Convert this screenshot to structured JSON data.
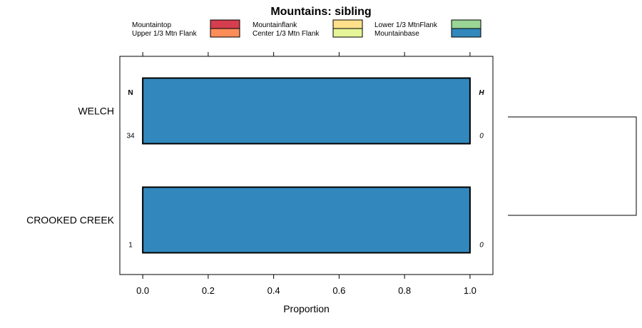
{
  "chart_data": {
    "type": "bar",
    "orientation": "horizontal",
    "stacked": true,
    "title": "Mountains: sibling",
    "xlabel": "Proportion",
    "ylabel": "",
    "xlim": [
      -0.07,
      1.07
    ],
    "x_ticks": [
      "0.0",
      "0.2",
      "0.4",
      "0.6",
      "0.8",
      "1.0"
    ],
    "x_tick_values": [
      0,
      0.2,
      0.4,
      0.6,
      0.8,
      1.0
    ],
    "categories": [
      "WELCH",
      "CROOKED CREEK"
    ],
    "series": [
      {
        "name": "Mountaintop",
        "color": "#d53e4f",
        "values": [
          0,
          0
        ]
      },
      {
        "name": "Upper 1/3 Mtn Flank",
        "color": "#fc8d59",
        "values": [
          0,
          0
        ]
      },
      {
        "name": "Mountainflank",
        "color": "#fee08b",
        "values": [
          0,
          0
        ]
      },
      {
        "name": "Center 1/3 Mtn Flank",
        "color": "#e6f598",
        "values": [
          0,
          0
        ]
      },
      {
        "name": "Lower 1/3 MtnFlank",
        "color": "#99d594",
        "values": [
          0,
          0
        ]
      },
      {
        "name": "Mountainbase",
        "color": "#3288bd",
        "values": [
          1.0,
          1.0
        ]
      }
    ],
    "legend_position": "top",
    "n_header": "N",
    "h_header": "H",
    "n_values": [
      "34",
      "1"
    ],
    "h_values": [
      "0",
      "0"
    ],
    "dendrogram": "right"
  }
}
